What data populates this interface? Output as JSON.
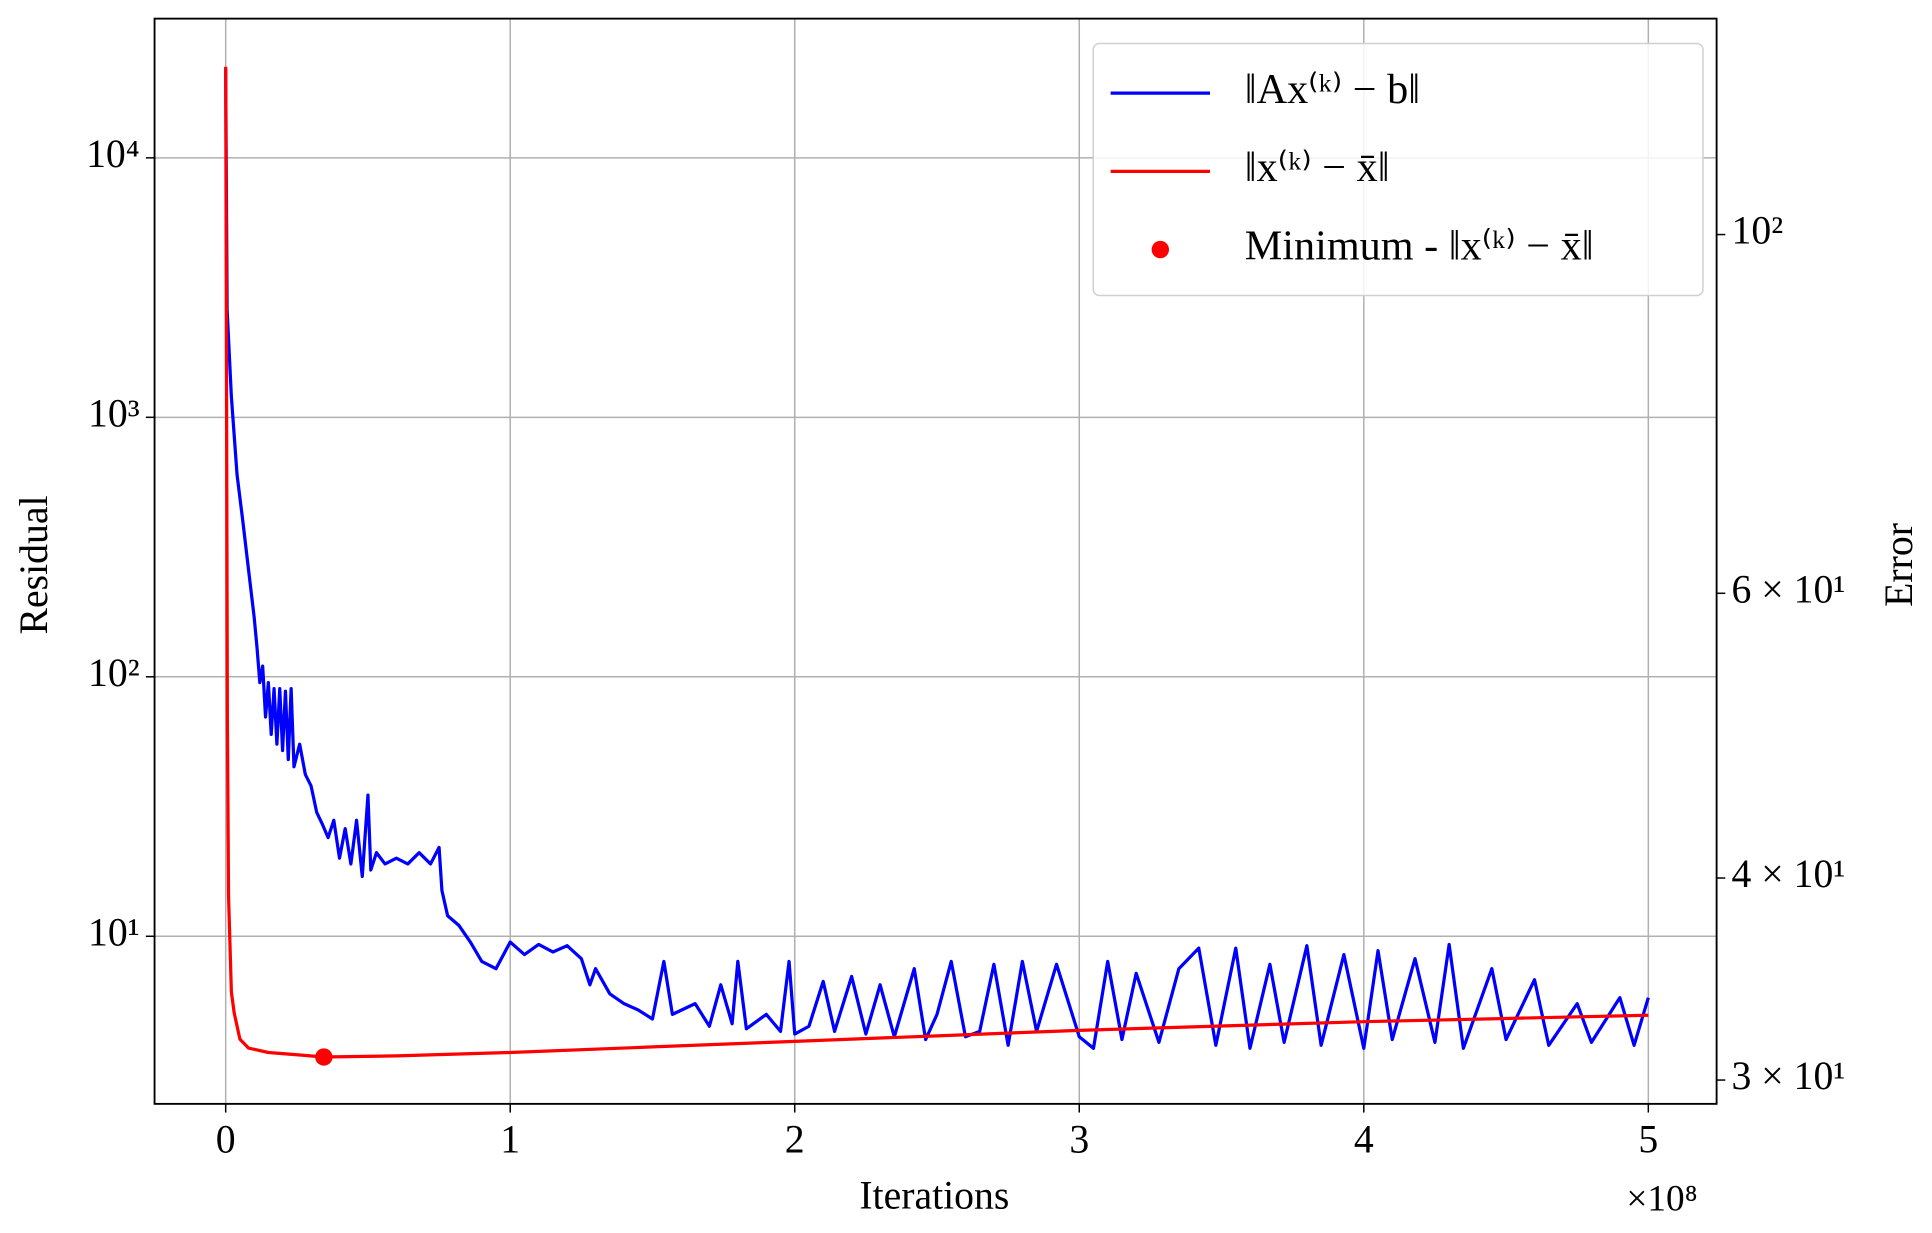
{
  "chart_data": {
    "type": "line",
    "xlabel": "Iterations",
    "ylabel": "Residual",
    "y2label": "Error",
    "ylabel_color": "#0000ff",
    "y2label_color": "#ff0000",
    "x_offset_label": "×10⁸",
    "xlim": [
      -0.25,
      5.24
    ],
    "ylim": [
      2.26,
      34400
    ],
    "y2lim": [
      29.0,
      136
    ],
    "ylog": true,
    "y2log": true,
    "grid": true,
    "legend": "upper right",
    "xticks": [
      0,
      1,
      2,
      3,
      4,
      5
    ],
    "yticks": [
      {
        "value": 10,
        "label": "10¹"
      },
      {
        "value": 100,
        "label": "10²"
      },
      {
        "value": 1000,
        "label": "10³"
      },
      {
        "value": 10000,
        "label": "10⁴"
      }
    ],
    "y2ticks": [
      {
        "value": 30,
        "label": "3 × 10¹"
      },
      {
        "value": 40,
        "label": "4 × 10¹"
      },
      {
        "value": 60,
        "label": "6 × 10¹"
      },
      {
        "value": 100,
        "label": "10²"
      }
    ],
    "series": [
      {
        "name": "‖Ax⁽ᵏ⁾ − b‖",
        "color": "#0000ff",
        "axis": "y",
        "type": "line",
        "x": [
          0,
          0.005,
          0.02,
          0.04,
          0.06,
          0.08,
          0.1,
          0.11,
          0.12,
          0.13,
          0.14,
          0.15,
          0.16,
          0.17,
          0.18,
          0.19,
          0.2,
          0.21,
          0.22,
          0.23,
          0.24,
          0.26,
          0.28,
          0.3,
          0.32,
          0.34,
          0.36,
          0.38,
          0.4,
          0.42,
          0.44,
          0.46,
          0.48,
          0.5,
          0.51,
          0.53,
          0.56,
          0.6,
          0.64,
          0.68,
          0.72,
          0.75,
          0.76,
          0.78,
          0.82,
          0.86,
          0.9,
          0.95,
          1.0,
          1.05,
          1.1,
          1.15,
          1.2,
          1.25,
          1.28,
          1.3,
          1.35,
          1.4,
          1.45,
          1.5,
          1.54,
          1.57,
          1.65,
          1.7,
          1.74,
          1.78,
          1.8,
          1.83,
          1.9,
          1.95,
          1.98,
          2.0,
          2.05,
          2.1,
          2.14,
          2.2,
          2.25,
          2.3,
          2.35,
          2.42,
          2.46,
          2.5,
          2.55,
          2.6,
          2.65,
          2.7,
          2.75,
          2.8,
          2.85,
          2.92,
          3.0,
          3.05,
          3.1,
          3.15,
          3.2,
          3.28,
          3.35,
          3.42,
          3.48,
          3.55,
          3.6,
          3.67,
          3.72,
          3.8,
          3.85,
          3.93,
          4.0,
          4.05,
          4.1,
          4.18,
          4.25,
          4.3,
          4.35,
          4.45,
          4.5,
          4.6,
          4.65,
          4.75,
          4.8,
          4.9,
          4.95,
          5.0
        ],
        "values": [
          22000,
          2600,
          1200,
          600,
          400,
          260,
          170,
          130,
          95,
          110,
          70,
          95,
          60,
          90,
          55,
          90,
          52,
          88,
          48,
          90,
          45,
          55,
          42,
          38,
          30,
          27,
          24,
          28,
          20,
          26,
          19,
          28,
          17,
          35,
          18,
          21,
          19,
          20,
          19,
          21,
          19,
          22,
          15,
          12,
          11,
          9.5,
          8,
          7.5,
          9.5,
          8.5,
          9.3,
          8.7,
          9.2,
          8.2,
          6.5,
          7.5,
          6,
          5.5,
          5.2,
          4.8,
          8,
          5,
          5.5,
          4.5,
          6.5,
          4.6,
          8,
          4.4,
          5,
          4.3,
          8,
          4.2,
          4.5,
          6.7,
          4.3,
          7,
          4.2,
          6.5,
          4.1,
          7.5,
          4,
          5,
          8,
          4.1,
          4.3,
          7.8,
          3.8,
          8,
          4.3,
          7.8,
          4.1,
          3.7,
          8,
          4,
          7.2,
          3.9,
          7.5,
          9,
          3.8,
          9,
          3.7,
          7.8,
          3.9,
          9.2,
          3.8,
          8.5,
          3.7,
          8.8,
          4,
          8.2,
          3.9,
          9.3,
          3.7,
          7.5,
          4,
          6.8,
          3.8,
          5.5,
          3.9,
          5.8,
          3.8,
          5.8
        ]
      },
      {
        "name": "‖x⁽ᵏ⁾ − x̄‖",
        "color": "#ff0000",
        "axis": "y2",
        "type": "line",
        "x": [
          0,
          0.003,
          0.006,
          0.01,
          0.02,
          0.03,
          0.05,
          0.08,
          0.15,
          0.25,
          0.345,
          0.6,
          1,
          1.5,
          2,
          2.5,
          3,
          3.5,
          4,
          4.5,
          5
        ],
        "values": [
          127,
          80,
          50,
          39,
          34,
          33,
          31.8,
          31.4,
          31.2,
          31.1,
          31.0,
          31.05,
          31.2,
          31.45,
          31.7,
          31.95,
          32.2,
          32.4,
          32.6,
          32.75,
          32.9
        ]
      },
      {
        "name": "Minimum - ‖x⁽ᵏ⁾ − x̄‖",
        "color": "#ff0000",
        "axis": "y2",
        "type": "scatter",
        "x": [
          0.345
        ],
        "values": [
          31.0
        ]
      }
    ]
  }
}
